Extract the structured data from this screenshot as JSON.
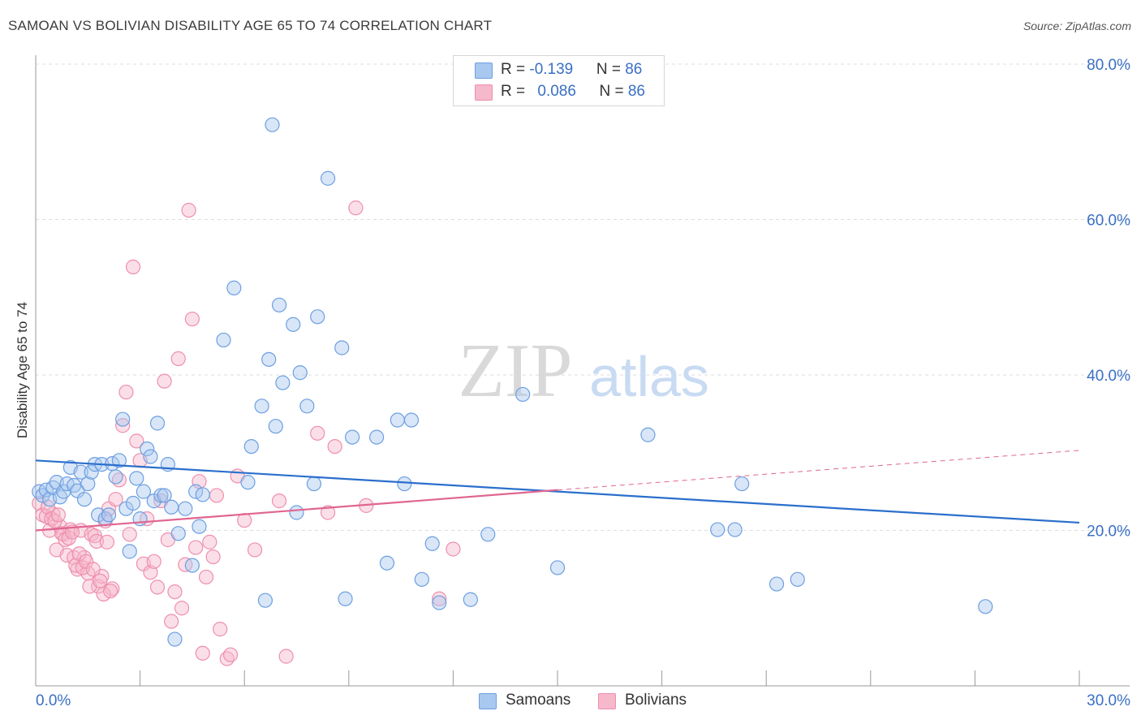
{
  "title": "SAMOAN VS BOLIVIAN DISABILITY AGE 65 TO 74 CORRELATION CHART",
  "source": "Source: ZipAtlas.com",
  "watermark": {
    "zip": "ZIP",
    "atlas": "atlas"
  },
  "legend_top": {
    "rows": [
      {
        "r_label": "R = ",
        "r_value": "-0.139",
        "n_label": "N = ",
        "n_value": "86",
        "color": "#a9c8f0"
      },
      {
        "r_label": "R = ",
        "r_value": "0.086",
        "n_label": "N = ",
        "n_value": "86",
        "color": "#f6b8cb"
      }
    ]
  },
  "legend_bottom": [
    {
      "label": "Samoans",
      "color": "#a9c8f0"
    },
    {
      "label": "Bolivians",
      "color": "#f6b8cb"
    }
  ],
  "colors": {
    "samoan_fill": "#a9c8f0",
    "samoan_stroke": "#6d9fe0",
    "samoan_line": "#2a6fcc",
    "bolivian_fill": "#f6b8cb",
    "bolivian_stroke": "#ee8fad",
    "bolivian_line": "#e06591",
    "axis_label": "#3a6fc4",
    "grid": "#dddddd"
  },
  "chart_data": {
    "type": "scatter",
    "title": "SAMOAN VS BOLIVIAN DISABILITY AGE 65 TO 74 CORRELATION CHART",
    "xlabel": "",
    "ylabel": "Disability Age 65 to 74",
    "xlim": [
      0,
      30
    ],
    "ylim": [
      0,
      80
    ],
    "x_tick_labels": [
      "0.0%",
      "30.0%"
    ],
    "y_tick_labels": [
      "20.0%",
      "40.0%",
      "60.0%",
      "80.0%"
    ],
    "y_ticks": [
      20,
      40,
      60,
      80
    ],
    "grid": true,
    "series": [
      {
        "name": "Samoans",
        "r": -0.139,
        "n": 86,
        "trend": {
          "x": [
            0,
            30
          ],
          "y": [
            29.0,
            21.0
          ]
        },
        "points": [
          [
            0.1,
            25.0
          ],
          [
            0.2,
            24.5
          ],
          [
            0.3,
            25.2
          ],
          [
            0.4,
            24.0
          ],
          [
            0.5,
            25.5
          ],
          [
            0.6,
            26.2
          ],
          [
            0.7,
            24.3
          ],
          [
            0.8,
            25.0
          ],
          [
            0.9,
            26.0
          ],
          [
            1.0,
            28.1
          ],
          [
            1.1,
            25.8
          ],
          [
            1.2,
            25.1
          ],
          [
            1.3,
            27.5
          ],
          [
            1.4,
            24.0
          ],
          [
            1.5,
            26.0
          ],
          [
            1.6,
            27.5
          ],
          [
            1.7,
            28.5
          ],
          [
            1.8,
            22.0
          ],
          [
            1.9,
            28.5
          ],
          [
            2.0,
            21.5
          ],
          [
            2.1,
            22.0
          ],
          [
            2.2,
            28.6
          ],
          [
            2.3,
            26.9
          ],
          [
            2.4,
            29.0
          ],
          [
            2.5,
            34.3
          ],
          [
            2.6,
            22.8
          ],
          [
            2.7,
            17.3
          ],
          [
            2.8,
            23.5
          ],
          [
            2.9,
            26.7
          ],
          [
            3.0,
            21.5
          ],
          [
            3.1,
            25.0
          ],
          [
            3.2,
            30.5
          ],
          [
            3.3,
            29.5
          ],
          [
            3.4,
            23.8
          ],
          [
            3.5,
            33.8
          ],
          [
            3.6,
            24.5
          ],
          [
            3.7,
            24.5
          ],
          [
            3.8,
            28.5
          ],
          [
            3.9,
            23.0
          ],
          [
            4.0,
            6.0
          ],
          [
            4.1,
            19.6
          ],
          [
            4.3,
            22.8
          ],
          [
            4.5,
            15.5
          ],
          [
            4.6,
            25.0
          ],
          [
            4.7,
            20.5
          ],
          [
            4.8,
            24.6
          ],
          [
            5.4,
            44.5
          ],
          [
            5.7,
            51.2
          ],
          [
            6.1,
            26.2
          ],
          [
            6.2,
            30.8
          ],
          [
            6.6,
            11.0
          ],
          [
            6.7,
            42.0
          ],
          [
            6.8,
            72.2
          ],
          [
            6.9,
            33.4
          ],
          [
            7.0,
            49.0
          ],
          [
            7.1,
            39.0
          ],
          [
            7.4,
            46.5
          ],
          [
            7.5,
            22.3
          ],
          [
            7.6,
            40.3
          ],
          [
            7.8,
            36.0
          ],
          [
            8.0,
            26.0
          ],
          [
            8.1,
            47.5
          ],
          [
            8.4,
            65.3
          ],
          [
            8.8,
            43.5
          ],
          [
            8.9,
            11.2
          ],
          [
            9.1,
            32.0
          ],
          [
            9.8,
            32.0
          ],
          [
            10.1,
            15.8
          ],
          [
            10.4,
            34.2
          ],
          [
            10.6,
            26.0
          ],
          [
            10.8,
            34.2
          ],
          [
            11.1,
            13.7
          ],
          [
            11.4,
            18.3
          ],
          [
            11.6,
            10.7
          ],
          [
            12.5,
            11.1
          ],
          [
            13.0,
            19.5
          ],
          [
            14.0,
            37.5
          ],
          [
            15.0,
            15.2
          ],
          [
            17.6,
            32.3
          ],
          [
            19.6,
            20.1
          ],
          [
            20.1,
            20.1
          ],
          [
            20.3,
            26.0
          ],
          [
            21.3,
            13.1
          ],
          [
            21.9,
            13.7
          ],
          [
            27.3,
            10.2
          ],
          [
            6.5,
            36.0
          ]
        ]
      },
      {
        "name": "Bolivians",
        "r": 0.086,
        "n": 86,
        "trend": {
          "x": [
            0,
            15
          ],
          "y": [
            20.0,
            25.2
          ]
        },
        "trend_dashed": {
          "x": [
            15,
            30
          ],
          "y": [
            25.2,
            30.3
          ]
        },
        "points": [
          [
            0.1,
            23.5
          ],
          [
            0.2,
            22.0
          ],
          [
            0.3,
            21.8
          ],
          [
            0.4,
            20.0
          ],
          [
            0.5,
            22.1
          ],
          [
            0.6,
            17.5
          ],
          [
            0.7,
            20.5
          ],
          [
            0.8,
            19.5
          ],
          [
            0.9,
            16.8
          ],
          [
            1.0,
            20.1
          ],
          [
            1.1,
            16.5
          ],
          [
            1.2,
            15.0
          ],
          [
            1.3,
            20.0
          ],
          [
            1.4,
            16.5
          ],
          [
            1.5,
            14.5
          ],
          [
            1.6,
            19.5
          ],
          [
            1.7,
            19.3
          ],
          [
            1.8,
            12.8
          ],
          [
            1.9,
            14.1
          ],
          [
            2.0,
            21.2
          ],
          [
            2.1,
            22.8
          ],
          [
            2.2,
            12.5
          ],
          [
            2.3,
            24.0
          ],
          [
            2.4,
            26.5
          ],
          [
            2.5,
            33.5
          ],
          [
            2.6,
            37.8
          ],
          [
            2.7,
            19.5
          ],
          [
            2.8,
            53.9
          ],
          [
            2.9,
            31.5
          ],
          [
            3.0,
            29.0
          ],
          [
            3.1,
            15.7
          ],
          [
            3.2,
            21.5
          ],
          [
            3.3,
            14.6
          ],
          [
            3.4,
            16.0
          ],
          [
            3.5,
            12.7
          ],
          [
            3.6,
            23.8
          ],
          [
            3.7,
            39.2
          ],
          [
            3.8,
            18.8
          ],
          [
            3.9,
            8.3
          ],
          [
            4.0,
            12.1
          ],
          [
            4.1,
            42.1
          ],
          [
            4.2,
            10.0
          ],
          [
            4.3,
            15.6
          ],
          [
            4.4,
            61.2
          ],
          [
            4.5,
            47.2
          ],
          [
            4.6,
            17.8
          ],
          [
            4.7,
            26.3
          ],
          [
            4.8,
            4.2
          ],
          [
            4.9,
            14.0
          ],
          [
            5.0,
            18.5
          ],
          [
            5.1,
            16.6
          ],
          [
            5.2,
            24.5
          ],
          [
            5.3,
            7.3
          ],
          [
            5.5,
            3.5
          ],
          [
            5.6,
            4.0
          ],
          [
            5.8,
            27.0
          ],
          [
            6.0,
            21.3
          ],
          [
            6.3,
            17.5
          ],
          [
            7.0,
            23.8
          ],
          [
            7.2,
            3.8
          ],
          [
            8.1,
            32.5
          ],
          [
            8.4,
            22.3
          ],
          [
            8.6,
            30.8
          ],
          [
            9.2,
            61.5
          ],
          [
            9.5,
            23.2
          ],
          [
            11.6,
            11.2
          ],
          [
            12.0,
            17.6
          ],
          [
            0.35,
            23.0
          ],
          [
            0.45,
            21.5
          ],
          [
            0.55,
            21.2
          ],
          [
            0.65,
            22.0
          ],
          [
            0.75,
            19.6
          ],
          [
            0.85,
            18.8
          ],
          [
            0.95,
            19.0
          ],
          [
            1.05,
            19.8
          ],
          [
            1.15,
            15.5
          ],
          [
            1.25,
            17.0
          ],
          [
            1.35,
            15.2
          ],
          [
            1.45,
            16.0
          ],
          [
            1.55,
            12.8
          ],
          [
            1.65,
            15.0
          ],
          [
            1.75,
            18.6
          ],
          [
            1.85,
            13.5
          ],
          [
            1.95,
            11.8
          ],
          [
            2.05,
            18.5
          ],
          [
            2.15,
            12.2
          ]
        ]
      }
    ]
  }
}
